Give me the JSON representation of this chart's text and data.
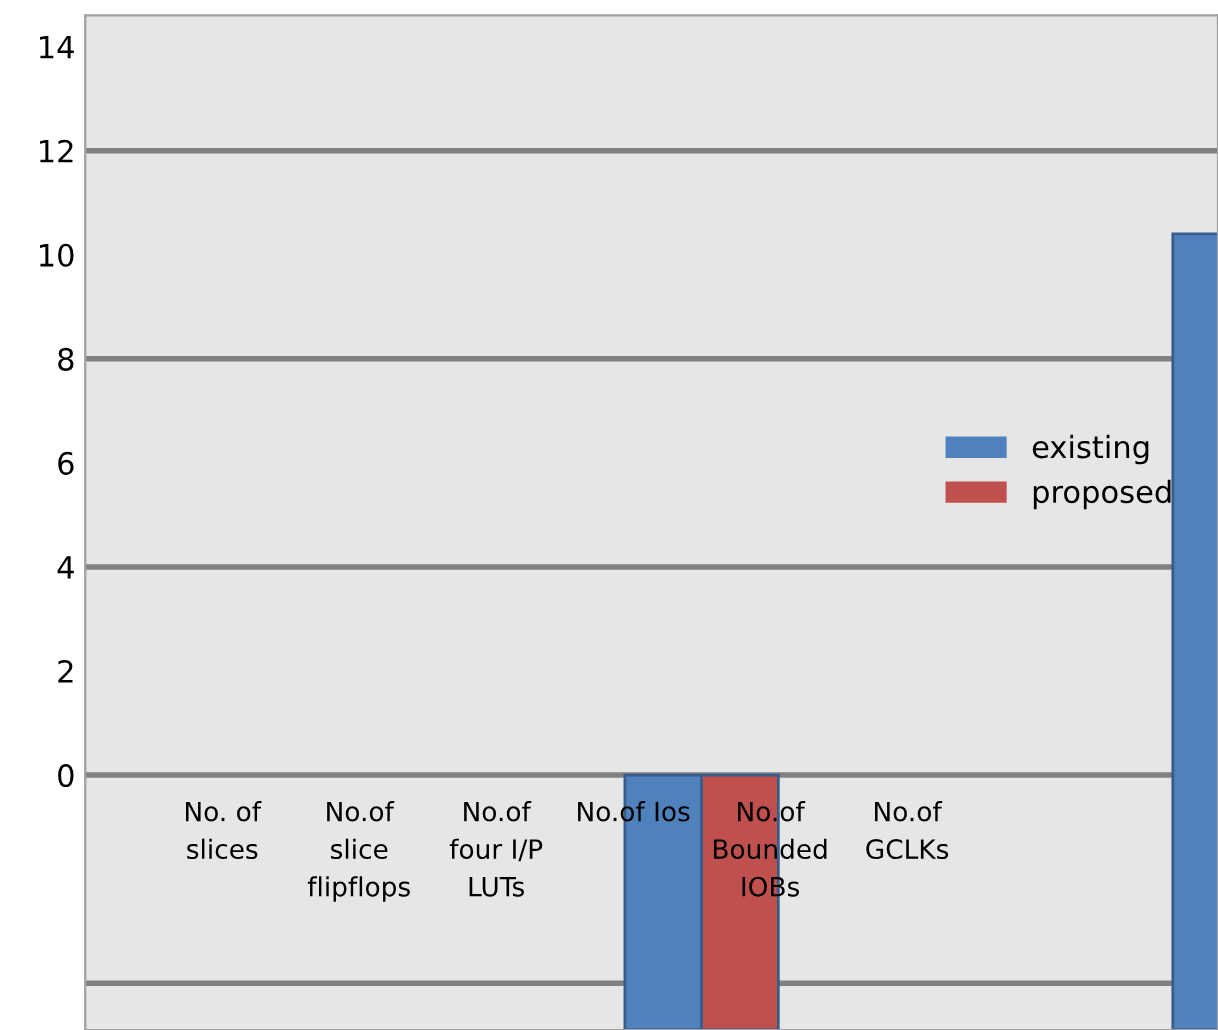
{
  "chart_data": {
    "type": "bar",
    "categories": [
      "No. of\nslices",
      "No.of\nslice\nflipflops",
      "No.of\nfour I/P\nLUTs",
      "No.of Ios",
      "No.of\nBounded\nIOBs",
      "No.of\nGCLKs",
      null,
      null
    ],
    "series": [
      {
        "name": "existing",
        "color": "#4f81bd",
        "values": [
          null,
          null,
          null,
          -4.9,
          null,
          null,
          null,
          15.3
        ],
        "base": [
          null,
          null,
          null,
          0,
          null,
          null,
          null,
          -4.9
        ]
      },
      {
        "name": "proposed",
        "color": "#c0504d",
        "values": [
          null,
          null,
          null,
          null,
          -4.9,
          null,
          null,
          null
        ],
        "base": [
          null,
          null,
          null,
          null,
          0,
          null,
          null,
          null
        ]
      }
    ],
    "ylim": [
      -4.9,
      14.6
    ],
    "yticks": [
      0,
      2,
      4,
      6,
      8,
      10,
      12,
      14
    ],
    "ref_lines": [
      {
        "axis": "y",
        "value": 12,
        "color": "#808080"
      },
      {
        "axis": "y",
        "value": 8,
        "color": "#808080"
      },
      {
        "axis": "y",
        "value": 4,
        "color": "#808080"
      },
      {
        "axis": "y",
        "value": 0,
        "color": "#808080"
      },
      {
        "axis": "y",
        "value": -4,
        "color": "#808080"
      }
    ],
    "grid": false,
    "legend": "right"
  }
}
